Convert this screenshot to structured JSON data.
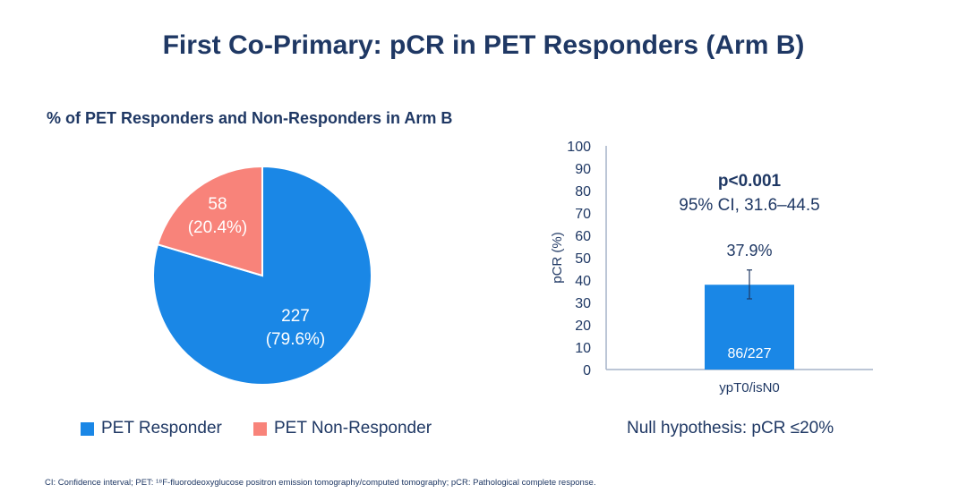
{
  "title": "First Co-Primary: pCR in PET Responders (Arm B)",
  "pie_subtitle": "% of PET Responders and Non-Responders in Arm B",
  "null_hypothesis": "Null hypothesis: pCR ≤20%",
  "footnote": "CI: Confidence interval; PET: ¹⁸F-fluorodeoxyglucose positron emission tomography/computed tomography; pCR: Pathological complete response.",
  "colors": {
    "responder": "#1a87e6",
    "non_responder": "#f8837a",
    "text": "#1f3864"
  },
  "chart_data": [
    {
      "type": "pie",
      "title": "% of PET Responders and Non-Responders in Arm B",
      "legend_placement": "bottom",
      "slices": [
        {
          "name": "PET Responder",
          "count": 227,
          "percent": 79.6,
          "label1": "227",
          "label2": "(79.6%)",
          "color": "#1a87e6"
        },
        {
          "name": "PET Non-Responder",
          "count": 58,
          "percent": 20.4,
          "label1": "58",
          "label2": "(20.4%)",
          "color": "#f8837a"
        }
      ]
    },
    {
      "type": "bar",
      "categories": [
        "ypT0/isN0"
      ],
      "values": [
        37.9
      ],
      "ylabel": "pCR (%)",
      "ylim": [
        0,
        100
      ],
      "yticks": [
        "0",
        "10",
        "20",
        "30",
        "40",
        "50",
        "60",
        "70",
        "80",
        "90",
        "100"
      ],
      "error": {
        "low": 31.6,
        "high": 44.5
      },
      "value_label": "37.9%",
      "inner_label": "86/227",
      "annotation_bold": "p<0.001",
      "annotation": "95% CI, 31.6–44.5",
      "grid": false,
      "color": "#1a87e6"
    }
  ]
}
